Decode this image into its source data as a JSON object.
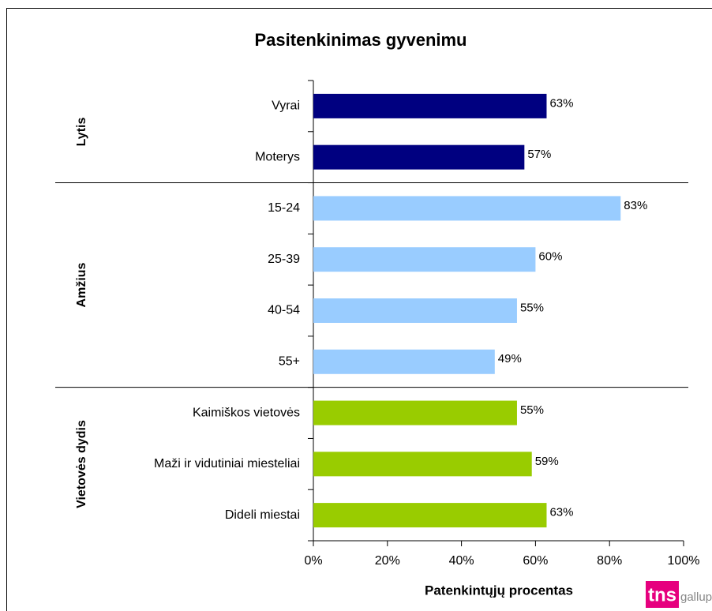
{
  "chart_data": {
    "type": "grouped-hbar",
    "title": "Pasitenkinimas gyvenimu",
    "xlabel": "Patenkintųjų procentas",
    "series": [
      {
        "name": "Lytis",
        "color": "#000080",
        "categories": [
          "Vyrai",
          "Moterys"
        ],
        "values": [
          63,
          57
        ],
        "value_labels": [
          "63%",
          "57%"
        ]
      },
      {
        "name": "Amžius",
        "color": "#99ccff",
        "categories": [
          "15-24",
          "25-39",
          "40-54",
          "55+"
        ],
        "values": [
          83,
          60,
          55,
          49
        ],
        "value_labels": [
          "83%",
          "60%",
          "55%",
          "49%"
        ]
      },
      {
        "name": "Vietovės dydis",
        "color": "#99cc00",
        "categories": [
          "Kaimiškos vietovės",
          "Maži ir vidutiniai miesteliai",
          "Dideli miestai"
        ],
        "values": [
          55,
          59,
          63
        ],
        "value_labels": [
          "55%",
          "59%",
          "63%"
        ]
      }
    ],
    "xlim": [
      0,
      100
    ],
    "xticks": [
      {
        "value": 0,
        "label": "0%"
      },
      {
        "value": 20,
        "label": "20%"
      },
      {
        "value": 40,
        "label": "40%"
      },
      {
        "value": 60,
        "label": "60%"
      },
      {
        "value": 80,
        "label": "80%"
      },
      {
        "value": 100,
        "label": "100%"
      }
    ]
  },
  "logo": {
    "brand": "tns",
    "suffix": "gallup"
  }
}
